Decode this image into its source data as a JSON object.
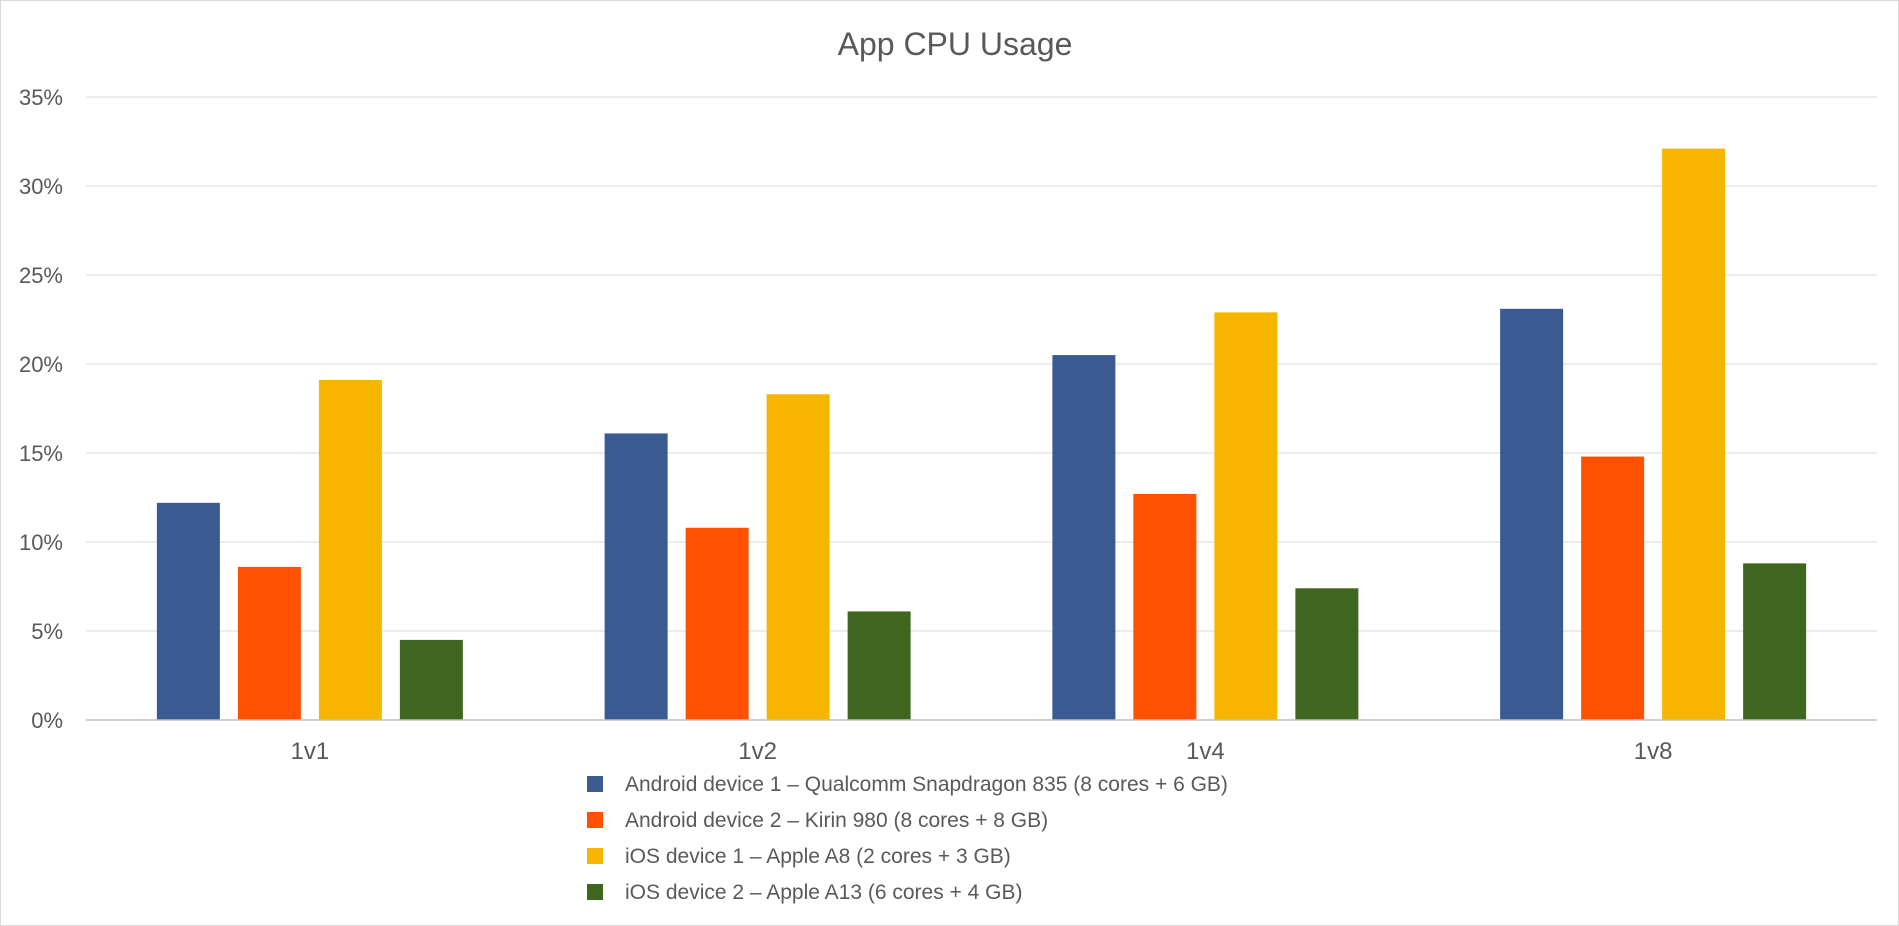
{
  "chart_data": {
    "type": "bar",
    "title": "App CPU Usage",
    "xlabel": "",
    "ylabel": "",
    "categories": [
      "1v1",
      "1v2",
      "1v4",
      "1v8"
    ],
    "ylim": [
      0,
      35
    ],
    "yticks": [
      "0%",
      "5%",
      "10%",
      "15%",
      "20%",
      "25%",
      "30%",
      "35%"
    ],
    "ytick_values": [
      0,
      5,
      10,
      15,
      20,
      25,
      30,
      35
    ],
    "grid": true,
    "legend_position": "bottom",
    "series": [
      {
        "name": "Android device 1 – Qualcomm Snapdragon 835 (8 cores + 6 GB)",
        "color": "#3a5a92",
        "values": [
          12.2,
          16.1,
          20.5,
          23.1
        ]
      },
      {
        "name": "Android device 2 – Kirin 980 (8 cores + 8 GB)",
        "color": "#ff5100",
        "values": [
          8.6,
          10.8,
          12.7,
          14.8
        ]
      },
      {
        "name": "iOS device 1 – Apple A8 (2 cores + 3 GB)",
        "color": "#f7b500",
        "values": [
          19.1,
          18.3,
          22.9,
          32.1
        ]
      },
      {
        "name": "iOS device 2 – Apple A13 (6 cores + 4 GB)",
        "color": "#3e661e",
        "values": [
          4.5,
          6.1,
          7.4,
          8.8
        ]
      }
    ]
  }
}
